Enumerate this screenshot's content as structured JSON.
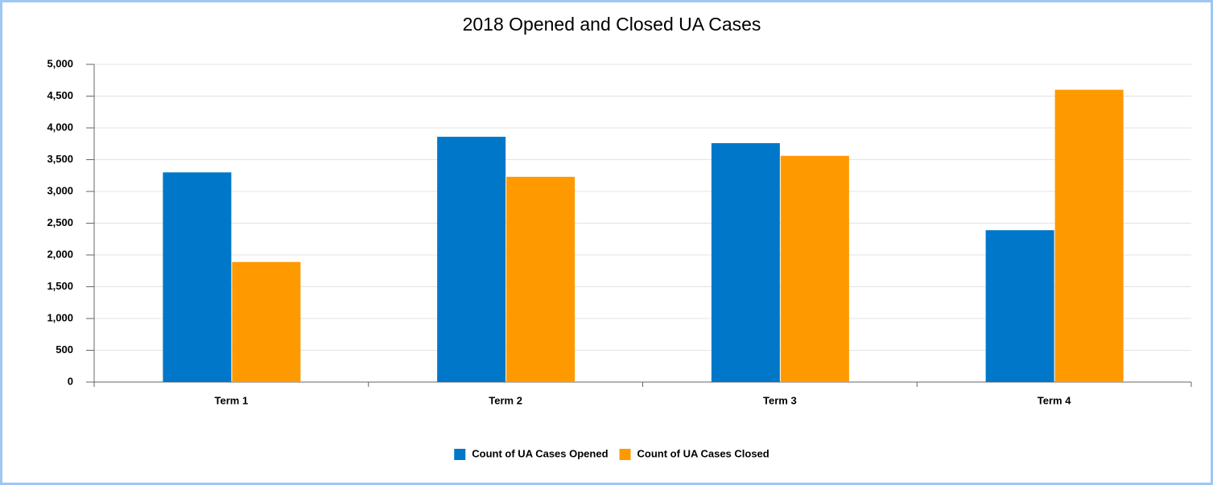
{
  "chart_data": {
    "type": "bar",
    "title": "2018 Opened and Closed UA Cases",
    "categories": [
      "Term 1",
      "Term 2",
      "Term 3",
      "Term 4"
    ],
    "series": [
      {
        "name": "Count of UA Cases Opened",
        "color": "#0077c8",
        "values": [
          3300,
          3860,
          3760,
          2390
        ]
      },
      {
        "name": "Count of UA Cases Closed",
        "color": "#ff9900",
        "values": [
          1890,
          3230,
          3560,
          4600
        ]
      }
    ],
    "ylim": [
      0,
      5000
    ],
    "yticks": [
      0,
      500,
      {
        "value": 1000,
        "label": "1,000"
      },
      {
        "value": 1500,
        "label": "1,500"
      },
      {
        "value": 2000,
        "label": "2,000"
      },
      {
        "value": 2500,
        "label": "2,500"
      },
      {
        "value": 3000,
        "label": "3,000"
      },
      {
        "value": 3500,
        "label": "3,500"
      },
      {
        "value": 4000,
        "label": "4,000"
      },
      {
        "value": 4500,
        "label": "4,500"
      },
      {
        "value": 5000,
        "label": "5,000"
      }
    ],
    "grid": true,
    "legend": "bottom"
  }
}
